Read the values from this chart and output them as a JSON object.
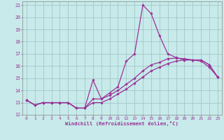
{
  "xlabel": "Windchill (Refroidissement éolien,°C)",
  "bg_color": "#c8eaea",
  "grid_color": "#a0c8c8",
  "line_color": "#993399",
  "spine_color": "#888888",
  "xlim": [
    -0.5,
    23.5
  ],
  "ylim": [
    12,
    21.3
  ],
  "xticks": [
    0,
    1,
    2,
    3,
    4,
    5,
    6,
    7,
    8,
    9,
    10,
    11,
    12,
    13,
    14,
    15,
    16,
    17,
    18,
    19,
    20,
    21,
    22,
    23
  ],
  "yticks": [
    12,
    13,
    14,
    15,
    16,
    17,
    18,
    19,
    20,
    21
  ],
  "curve1_x": [
    0,
    1,
    2,
    3,
    4,
    5,
    6,
    7,
    8,
    9,
    10,
    11,
    12,
    13,
    14,
    15,
    16,
    17,
    18,
    19,
    20,
    21,
    22,
    23
  ],
  "curve1_y": [
    13.2,
    12.8,
    13.0,
    13.0,
    13.0,
    13.0,
    12.55,
    12.55,
    14.85,
    13.3,
    13.8,
    14.3,
    16.4,
    17.0,
    21.0,
    20.3,
    18.5,
    17.0,
    16.7,
    16.5,
    16.5,
    16.5,
    16.1,
    15.1
  ],
  "curve2_x": [
    0,
    1,
    2,
    3,
    4,
    5,
    6,
    7,
    8,
    9,
    10,
    11,
    12,
    13,
    14,
    15,
    16,
    17,
    18,
    19,
    20,
    21,
    22,
    23
  ],
  "curve2_y": [
    13.2,
    12.8,
    13.0,
    13.0,
    13.0,
    13.0,
    12.55,
    12.55,
    13.3,
    13.3,
    13.6,
    14.0,
    14.5,
    15.0,
    15.6,
    16.1,
    16.3,
    16.6,
    16.65,
    16.6,
    16.5,
    16.5,
    16.1,
    15.1
  ],
  "curve3_x": [
    0,
    1,
    2,
    3,
    4,
    5,
    6,
    7,
    8,
    9,
    10,
    11,
    12,
    13,
    14,
    15,
    16,
    17,
    18,
    19,
    20,
    21,
    22,
    23
  ],
  "curve3_y": [
    13.2,
    12.8,
    13.0,
    13.0,
    13.0,
    13.0,
    12.55,
    12.55,
    13.0,
    13.0,
    13.3,
    13.7,
    14.1,
    14.6,
    15.1,
    15.6,
    15.9,
    16.2,
    16.4,
    16.5,
    16.5,
    16.4,
    15.9,
    15.1
  ]
}
